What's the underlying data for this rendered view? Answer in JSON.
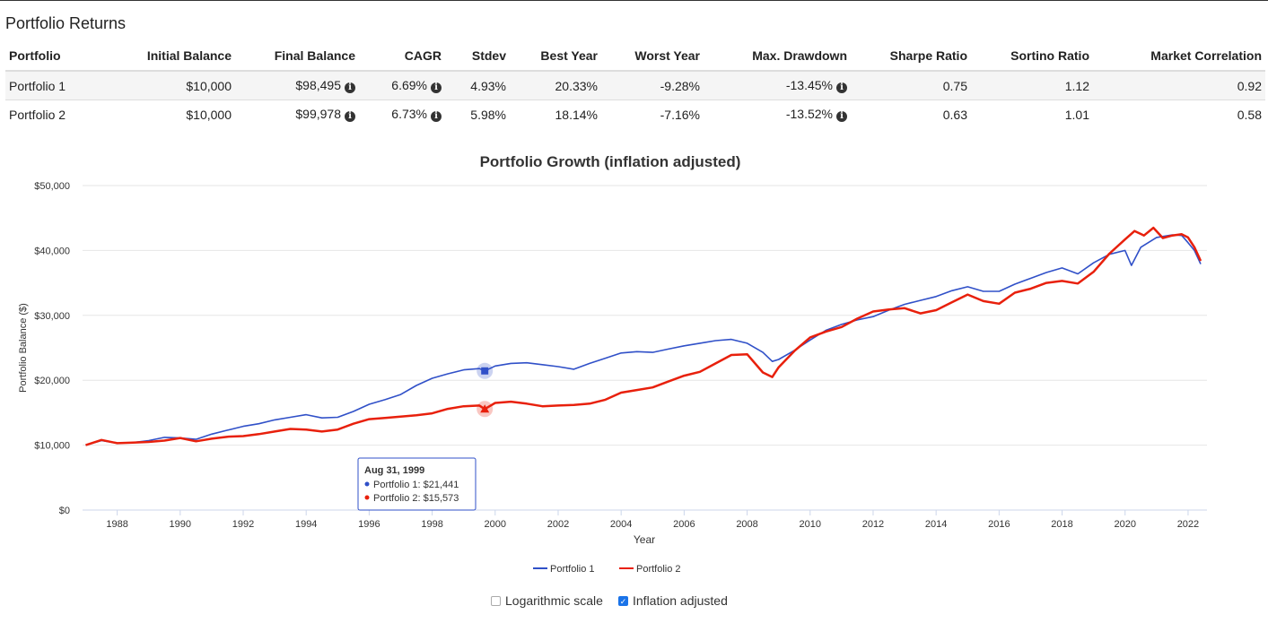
{
  "section_title": "Portfolio Returns",
  "table": {
    "headers": [
      "Portfolio",
      "Initial Balance",
      "Final Balance",
      "CAGR",
      "Stdev",
      "Best Year",
      "Worst Year",
      "Max. Drawdown",
      "Sharpe Ratio",
      "Sortino Ratio",
      "Market Correlation"
    ],
    "rows": [
      {
        "name": "Portfolio 1",
        "initial": "$10,000",
        "final": "$98,495",
        "cagr": "6.69%",
        "stdev": "4.93%",
        "best": "20.33%",
        "worst": "-9.28%",
        "drawdown": "-13.45%",
        "sharpe": "0.75",
        "sortino": "1.12",
        "corr": "0.92"
      },
      {
        "name": "Portfolio 2",
        "initial": "$10,000",
        "final": "$99,978",
        "cagr": "6.73%",
        "stdev": "5.98%",
        "best": "18.14%",
        "worst": "-7.16%",
        "drawdown": "-13.52%",
        "sharpe": "0.63",
        "sortino": "1.01",
        "corr": "0.58"
      }
    ],
    "info_icon": "info-circle-icon"
  },
  "chart_data": {
    "type": "line",
    "title": "Portfolio Growth (inflation adjusted)",
    "xlabel": "Year",
    "ylabel": "Portfolio Balance ($)",
    "ylim": [
      0,
      50000
    ],
    "xlim": [
      1986.9,
      2022.6
    ],
    "y_ticks": [
      0,
      10000,
      20000,
      30000,
      40000,
      50000
    ],
    "y_tick_labels": [
      "$0",
      "$10,000",
      "$20,000",
      "$30,000",
      "$40,000",
      "$50,000"
    ],
    "x_ticks": [
      1988,
      1990,
      1992,
      1994,
      1996,
      1998,
      2000,
      2002,
      2004,
      2006,
      2008,
      2010,
      2012,
      2014,
      2016,
      2018,
      2020,
      2022
    ],
    "grid": true,
    "legend_position": "bottom",
    "series": [
      {
        "name": "Portfolio 1",
        "color": "#3050c8",
        "marker": "square",
        "x": [
          1987.0,
          1987.5,
          1988.0,
          1988.5,
          1989.0,
          1989.5,
          1990.0,
          1990.5,
          1991.0,
          1991.5,
          1992.0,
          1992.5,
          1993.0,
          1993.5,
          1994.0,
          1994.5,
          1995.0,
          1995.5,
          1996.0,
          1996.5,
          1997.0,
          1997.5,
          1998.0,
          1998.5,
          1999.0,
          1999.5,
          1999.67,
          2000.0,
          2000.5,
          2001.0,
          2001.5,
          2002.0,
          2002.5,
          2003.0,
          2003.5,
          2004.0,
          2004.5,
          2005.0,
          2005.5,
          2006.0,
          2006.5,
          2007.0,
          2007.5,
          2008.0,
          2008.5,
          2008.8,
          2009.0,
          2009.5,
          2010.0,
          2010.5,
          2011.0,
          2011.5,
          2012.0,
          2012.5,
          2013.0,
          2013.5,
          2014.0,
          2014.5,
          2015.0,
          2015.5,
          2016.0,
          2016.5,
          2017.0,
          2017.5,
          2018.0,
          2018.5,
          2019.0,
          2019.5,
          2020.0,
          2020.2,
          2020.5,
          2021.0,
          2021.5,
          2021.8,
          2022.0,
          2022.2,
          2022.4
        ],
        "y": [
          10000,
          10700,
          10300,
          10400,
          10700,
          11200,
          11100,
          10900,
          11700,
          12300,
          12900,
          13300,
          13900,
          14300,
          14700,
          14200,
          14300,
          15200,
          16300,
          17000,
          17800,
          19200,
          20300,
          21000,
          21600,
          21800,
          21441,
          22200,
          22600,
          22700,
          22400,
          22100,
          21700,
          22600,
          23400,
          24200,
          24400,
          24300,
          24800,
          25300,
          25700,
          26100,
          26300,
          25700,
          24300,
          22900,
          23200,
          24600,
          26200,
          27700,
          28600,
          29300,
          29800,
          30800,
          31700,
          32300,
          32900,
          33800,
          34400,
          33700,
          33700,
          34800,
          35700,
          36600,
          37300,
          36400,
          38100,
          39400,
          40000,
          37700,
          40500,
          42000,
          42400,
          42300,
          41200,
          40000,
          37900
        ]
      },
      {
        "name": "Portfolio 2",
        "color": "#e8200c",
        "marker": "triangle",
        "x": [
          1987.0,
          1987.5,
          1988.0,
          1988.5,
          1989.0,
          1989.5,
          1990.0,
          1990.5,
          1991.0,
          1991.5,
          1992.0,
          1992.5,
          1993.0,
          1993.5,
          1994.0,
          1994.5,
          1995.0,
          1995.5,
          1996.0,
          1996.5,
          1997.0,
          1997.5,
          1998.0,
          1998.5,
          1999.0,
          1999.5,
          1999.67,
          2000.0,
          2000.5,
          2001.0,
          2001.5,
          2002.0,
          2002.5,
          2003.0,
          2003.5,
          2004.0,
          2004.5,
          2005.0,
          2005.5,
          2006.0,
          2006.5,
          2007.0,
          2007.5,
          2008.0,
          2008.5,
          2008.8,
          2009.0,
          2009.5,
          2010.0,
          2010.5,
          2011.0,
          2011.5,
          2012.0,
          2012.5,
          2013.0,
          2013.5,
          2014.0,
          2014.5,
          2015.0,
          2015.5,
          2016.0,
          2016.5,
          2017.0,
          2017.5,
          2018.0,
          2018.5,
          2019.0,
          2019.5,
          2020.0,
          2020.3,
          2020.6,
          2020.9,
          2021.2,
          2021.5,
          2021.8,
          2022.0,
          2022.2,
          2022.4
        ],
        "y": [
          10000,
          10800,
          10300,
          10400,
          10500,
          10700,
          11100,
          10600,
          11000,
          11300,
          11400,
          11700,
          12100,
          12500,
          12400,
          12100,
          12400,
          13300,
          14000,
          14200,
          14400,
          14600,
          14900,
          15600,
          16000,
          16100,
          15573,
          16500,
          16700,
          16400,
          16000,
          16100,
          16200,
          16400,
          17000,
          18100,
          18500,
          18900,
          19800,
          20700,
          21300,
          22600,
          23900,
          24000,
          21200,
          20500,
          22000,
          24500,
          26600,
          27500,
          28200,
          29500,
          30600,
          30900,
          31100,
          30300,
          30800,
          32000,
          33200,
          32200,
          31800,
          33500,
          34100,
          35000,
          35300,
          34900,
          36700,
          39500,
          41700,
          43000,
          42300,
          43500,
          41900,
          42300,
          42500,
          42000,
          40500,
          38400
        ]
      }
    ],
    "tooltip": {
      "date": "Aug 31, 1999",
      "x": 1999.67,
      "lines": [
        "Portfolio 1: $21,441",
        "Portfolio 2: $15,573"
      ]
    }
  },
  "options": {
    "log_label": "Logarithmic scale",
    "log_checked": false,
    "inflation_label": "Inflation adjusted",
    "inflation_checked": true
  }
}
